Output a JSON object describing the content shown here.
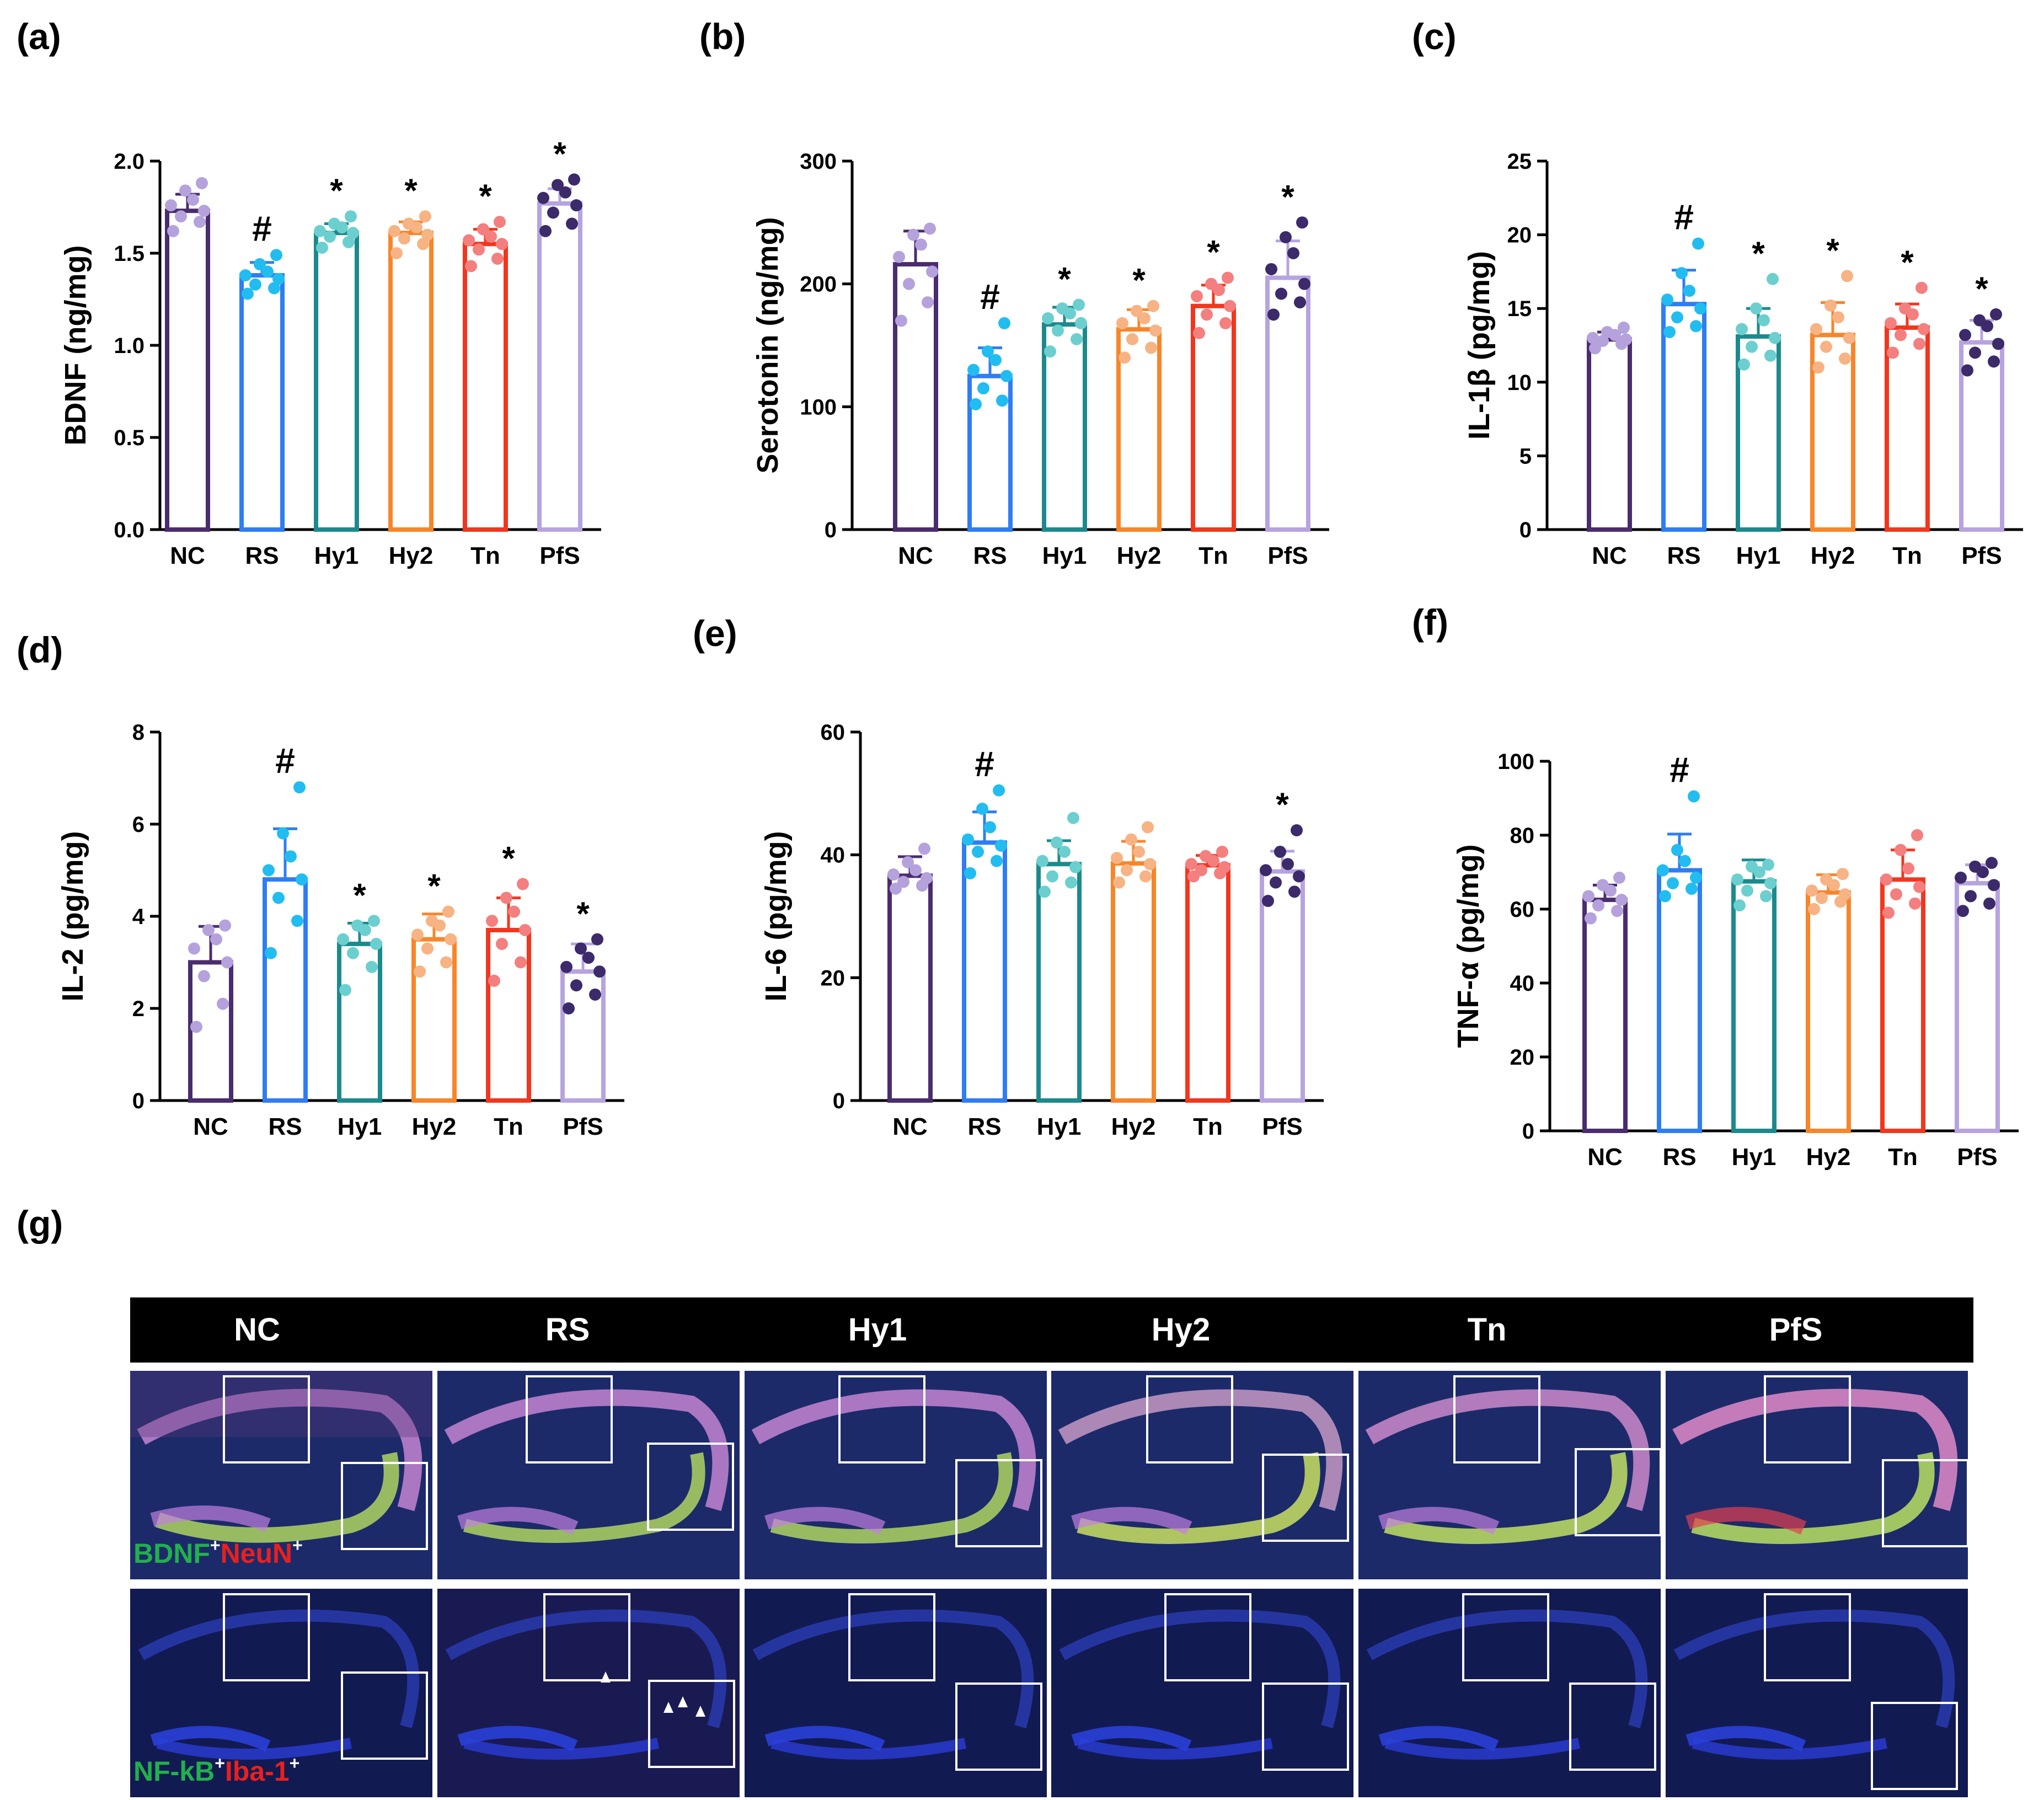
{
  "panels": [
    "(a)",
    "(b)",
    "(c)",
    "(d)",
    "(e)",
    "(f)",
    "(g)"
  ],
  "colors": {
    "NC": "#4b2c6e",
    "RS": "#2f7df2",
    "Hy1": "#1c8a8c",
    "Hy2": "#f7862a",
    "Tn": "#f2361e",
    "PfS": "#b7a3df",
    "NC_dots": "#b5a2dc",
    "RS_dots": "#22bdf0",
    "Hy1_dots": "#6ccfcf",
    "Hy2_dots": "#f7b383",
    "Tn_dots": "#f47f7f",
    "PfS_dots": "#3c2a6a"
  },
  "chart_data": [
    {
      "type": "bar",
      "panel": "(a)",
      "categories": [
        "NC",
        "RS",
        "Hy1",
        "Hy2",
        "Tn",
        "PfS"
      ],
      "values": [
        1.73,
        1.38,
        1.61,
        1.61,
        1.55,
        1.77
      ],
      "errors": [
        0.09,
        0.07,
        0.05,
        0.06,
        0.08,
        0.08
      ],
      "points": [
        [
          1.62,
          1.67,
          1.7,
          1.73,
          1.76,
          1.79,
          1.84,
          1.88
        ],
        [
          1.28,
          1.31,
          1.33,
          1.36,
          1.38,
          1.4,
          1.44,
          1.49
        ],
        [
          1.53,
          1.56,
          1.59,
          1.61,
          1.62,
          1.64,
          1.66,
          1.7
        ],
        [
          1.5,
          1.55,
          1.58,
          1.6,
          1.62,
          1.64,
          1.66,
          1.7
        ],
        [
          1.43,
          1.47,
          1.52,
          1.55,
          1.57,
          1.59,
          1.63,
          1.67
        ],
        [
          1.62,
          1.66,
          1.72,
          1.76,
          1.8,
          1.83,
          1.87,
          1.9
        ]
      ],
      "annotations": [
        "",
        "#",
        "*",
        "*",
        "*",
        "*"
      ],
      "ylabel": "BDNF (ng/mg)",
      "ylim": [
        0,
        2.0
      ],
      "yticks": [
        "0.0",
        "0.5",
        "1.0",
        "1.5",
        "2.0"
      ],
      "ytick_values": [
        0,
        0.5,
        1.0,
        1.5,
        2.0
      ]
    },
    {
      "type": "bar",
      "panel": "(b)",
      "categories": [
        "NC",
        "RS",
        "Hy1",
        "Hy2",
        "Tn",
        "PfS"
      ],
      "values": [
        216,
        125,
        167,
        163,
        182,
        205
      ],
      "errors": [
        27,
        23,
        14,
        16,
        17,
        30
      ],
      "points": [
        [
          170,
          185,
          200,
          210,
          222,
          232,
          240,
          245
        ],
        [
          102,
          105,
          115,
          125,
          130,
          138,
          145,
          168
        ],
        [
          145,
          155,
          162,
          168,
          172,
          176,
          180,
          183
        ],
        [
          140,
          148,
          155,
          162,
          168,
          172,
          178,
          182
        ],
        [
          160,
          168,
          175,
          182,
          190,
          195,
          200,
          205
        ],
        [
          175,
          185,
          192,
          200,
          212,
          225,
          238,
          250
        ]
      ],
      "annotations": [
        "",
        "#",
        "*",
        "*",
        "*",
        "*"
      ],
      "ylabel": "Serotonin (ng/mg)",
      "ylim": [
        0,
        300
      ],
      "yticks": [
        "0",
        "100",
        "200",
        "300"
      ],
      "ytick_values": [
        0,
        100,
        200,
        300
      ]
    },
    {
      "type": "bar",
      "panel": "(c)",
      "categories": [
        "NC",
        "RS",
        "Hy1",
        "Hy2",
        "Tn",
        "PfS"
      ],
      "values": [
        12.9,
        15.3,
        13.1,
        13.2,
        13.7,
        12.7
      ],
      "errors": [
        0.5,
        2.3,
        1.9,
        2.2,
        1.6,
        1.5
      ],
      "points": [
        [
          12.3,
          12.6,
          12.8,
          12.9,
          13.0,
          13.2,
          13.4,
          13.7
        ],
        [
          13.4,
          13.8,
          14.4,
          15.0,
          15.6,
          16.2,
          17.4,
          19.4
        ],
        [
          11.2,
          11.8,
          12.4,
          13.0,
          13.6,
          14.2,
          15.0,
          17.0
        ],
        [
          11.0,
          11.6,
          12.4,
          13.0,
          13.6,
          14.4,
          15.2,
          17.2
        ],
        [
          12.0,
          12.6,
          13.2,
          13.6,
          14.0,
          14.6,
          15.0,
          16.4
        ],
        [
          10.8,
          11.4,
          12.0,
          12.6,
          13.2,
          13.8,
          14.2,
          14.6
        ]
      ],
      "annotations": [
        "",
        "#",
        "*",
        "*",
        "*",
        "*"
      ],
      "ylabel": "IL-1β (pg/mg)",
      "ylim": [
        0,
        25
      ],
      "yticks": [
        "0",
        "5",
        "10",
        "15",
        "20",
        "25"
      ],
      "ytick_values": [
        0,
        5,
        10,
        15,
        20,
        25
      ]
    },
    {
      "type": "bar",
      "panel": "(d)",
      "categories": [
        "NC",
        "RS",
        "Hy1",
        "Hy2",
        "Tn",
        "PfS"
      ],
      "values": [
        3.0,
        4.8,
        3.4,
        3.5,
        3.7,
        2.8
      ],
      "errors": [
        0.78,
        1.1,
        0.45,
        0.55,
        0.7,
        0.6
      ],
      "points": [
        [
          1.6,
          2.1,
          2.7,
          3.0,
          3.3,
          3.5,
          3.7,
          3.8
        ],
        [
          3.2,
          3.9,
          4.4,
          4.8,
          5.0,
          5.3,
          5.8,
          6.8
        ],
        [
          2.4,
          2.9,
          3.2,
          3.4,
          3.5,
          3.7,
          3.8,
          3.9
        ],
        [
          2.8,
          3.0,
          3.3,
          3.5,
          3.6,
          3.8,
          3.9,
          4.1
        ],
        [
          2.6,
          3.0,
          3.4,
          3.7,
          3.9,
          4.1,
          4.4,
          4.7
        ],
        [
          2.0,
          2.3,
          2.5,
          2.8,
          2.9,
          3.1,
          3.3,
          3.5
        ]
      ],
      "annotations": [
        "",
        "#",
        "*",
        "*",
        "*",
        "*"
      ],
      "ylabel": "IL-2 (pg/mg)",
      "ylim": [
        0,
        8
      ],
      "yticks": [
        "0",
        "2",
        "4",
        "6",
        "8"
      ],
      "ytick_values": [
        0,
        2,
        4,
        6,
        8
      ]
    },
    {
      "type": "bar",
      "panel": "(e)",
      "categories": [
        "NC",
        "RS",
        "Hy1",
        "Hy2",
        "Tn",
        "PfS"
      ],
      "values": [
        36.6,
        42.0,
        38.5,
        38.6,
        38.3,
        37.3
      ],
      "errors": [
        3.1,
        5.0,
        3.8,
        3.6,
        1.6,
        3.3
      ],
      "points": [
        [
          34.5,
          35.0,
          35.6,
          36.2,
          36.8,
          37.5,
          38.8,
          41.0
        ],
        [
          37.0,
          39.0,
          40.5,
          41.5,
          42.5,
          44.5,
          47.5,
          50.5
        ],
        [
          34.0,
          35.5,
          36.5,
          38.0,
          39.0,
          40.5,
          42.0,
          46.0
        ],
        [
          35.5,
          36.5,
          37.5,
          38.5,
          39.5,
          40.5,
          42.5,
          44.5
        ],
        [
          36.5,
          37.0,
          37.5,
          38.0,
          38.5,
          39.0,
          39.8,
          40.5
        ],
        [
          32.5,
          34.0,
          35.5,
          36.5,
          37.5,
          38.5,
          40.5,
          44.0
        ]
      ],
      "annotations": [
        "",
        "#",
        "",
        "",
        "",
        "*"
      ],
      "ylabel": "IL-6 (pg/mg)",
      "ylim": [
        0,
        60
      ],
      "yticks": [
        "0",
        "20",
        "40",
        "60"
      ],
      "ytick_values": [
        0,
        20,
        40,
        60
      ]
    },
    {
      "type": "bar",
      "panel": "(f)",
      "categories": [
        "NC",
        "RS",
        "Hy1",
        "Hy2",
        "Tn",
        "PfS"
      ],
      "values": [
        62.5,
        70.5,
        67.5,
        64.5,
        68.0,
        67.0
      ],
      "errors": [
        4.0,
        9.8,
        5.8,
        4.8,
        8.0,
        5.0
      ],
      "points": [
        [
          57.5,
          59.5,
          61.0,
          62.5,
          63.5,
          65.0,
          66.5,
          68.5
        ],
        [
          63.5,
          65.5,
          67.0,
          68.5,
          70.5,
          73.0,
          76.0,
          90.5
        ],
        [
          61.0,
          63.5,
          65.0,
          67.0,
          68.0,
          70.0,
          71.5,
          72.0
        ],
        [
          60.0,
          62.0,
          63.0,
          64.0,
          65.0,
          66.5,
          68.0,
          69.5
        ],
        [
          59.0,
          61.5,
          64.0,
          66.0,
          68.0,
          71.0,
          76.0,
          80.0
        ],
        [
          59.5,
          61.5,
          63.5,
          66.5,
          68.5,
          70.0,
          71.5,
          72.5
        ]
      ],
      "annotations": [
        "",
        "#",
        "",
        "",
        "",
        ""
      ],
      "ylabel": "TNF-α (pg/mg)",
      "ylim": [
        0,
        100
      ],
      "yticks": [
        "0",
        "20",
        "40",
        "60",
        "80",
        "100"
      ],
      "ytick_values": [
        0,
        20,
        40,
        60,
        80,
        100
      ]
    }
  ],
  "micrographs": {
    "columns": [
      "NC",
      "RS",
      "Hy1",
      "Hy2",
      "Tn",
      "PfS"
    ],
    "row1_label": {
      "a": "BDNF",
      "a_sup": "+",
      "b": "NeuN",
      "b_sup": "+"
    },
    "row2_label": {
      "a": "NF-kB",
      "a_sup": "+",
      "b": "Iba-1",
      "b_sup": "+"
    }
  }
}
